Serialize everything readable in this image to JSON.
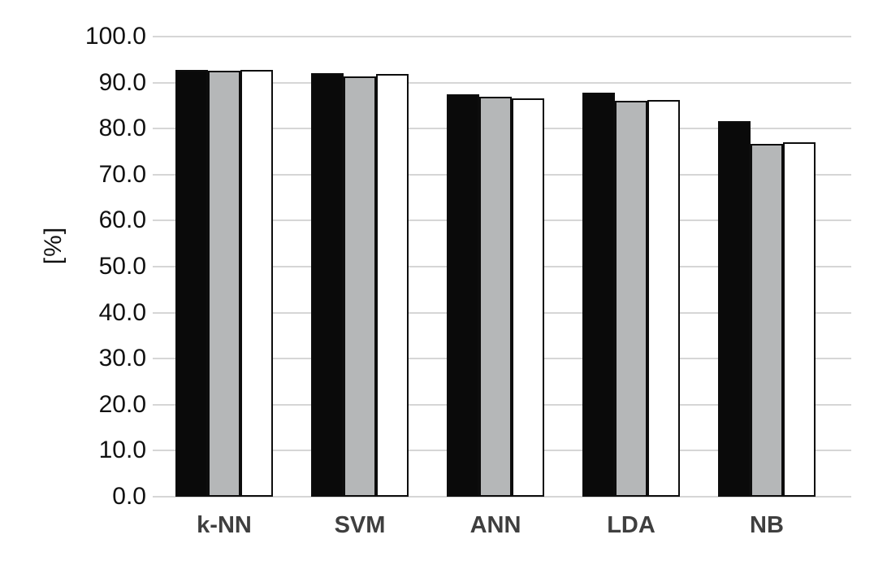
{
  "chart_data": {
    "type": "bar",
    "title": "",
    "ylabel": "[%]",
    "xlabel": "",
    "ylim": [
      0,
      100
    ],
    "ytick_step": 10,
    "ytick_labels": [
      "0.0",
      "10.0",
      "20.0",
      "30.0",
      "40.0",
      "50.0",
      "60.0",
      "70.0",
      "80.0",
      "90.0",
      "100.0"
    ],
    "categories": [
      "k-NN",
      "SVM",
      "ANN",
      "LDA",
      "NB"
    ],
    "series": [
      {
        "name": "series-black",
        "color": "#0a0a0a",
        "values": [
          92.8,
          92.0,
          87.5,
          87.8,
          81.6
        ]
      },
      {
        "name": "series-gray",
        "color": "#b5b7b8",
        "values": [
          92.6,
          91.3,
          87.0,
          86.0,
          76.7
        ]
      },
      {
        "name": "series-white",
        "color": "#ffffff",
        "values": [
          92.8,
          91.9,
          86.6,
          86.2,
          77.0
        ]
      }
    ],
    "grid": true,
    "legend": "none",
    "gridline_color": "#d6d6d6",
    "bar_border_color": "#0d0d0d"
  }
}
